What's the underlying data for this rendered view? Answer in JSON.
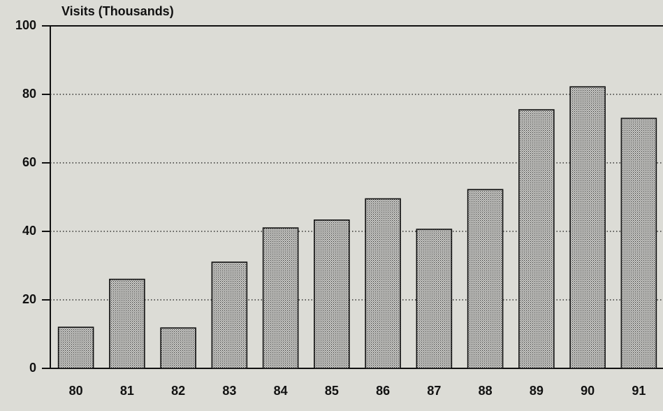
{
  "chart_data": {
    "type": "bar",
    "y_axis_label": "Visits (Thousands)",
    "categories": [
      "80",
      "81",
      "82",
      "83",
      "84",
      "85",
      "86",
      "87",
      "88",
      "89",
      "90",
      "91"
    ],
    "values": [
      12,
      26,
      11.8,
      31,
      41,
      43.3,
      49.5,
      40.6,
      52.2,
      75.5,
      82.2,
      73
    ],
    "color": "#c8c8c4",
    "ylim": [
      0,
      100
    ],
    "yticks": [
      0,
      20,
      40,
      60,
      80,
      100
    ],
    "grid": true
  }
}
